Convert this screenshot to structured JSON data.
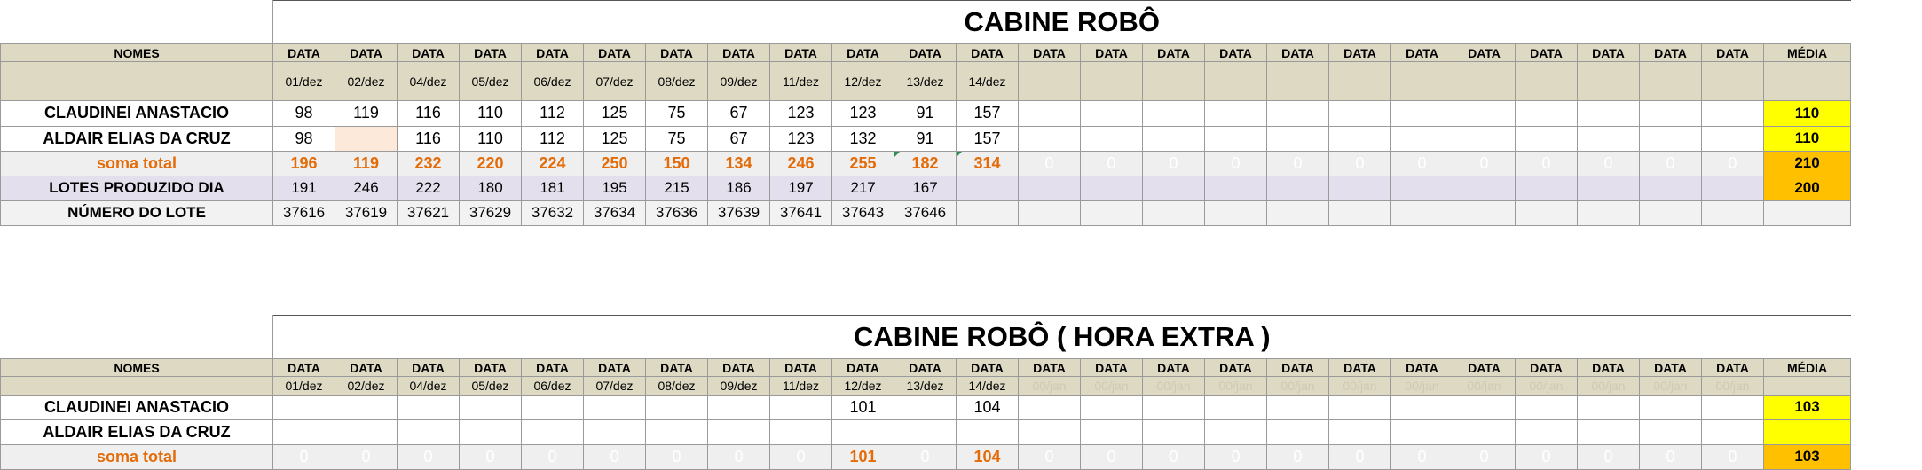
{
  "sheet1": {
    "title": "CABINE ROBÔ",
    "header": {
      "names_label": "NOMES",
      "date_label": "DATA",
      "average_label": "MÉDIA",
      "dates": [
        "01/dez",
        "02/dez",
        "04/dez",
        "05/dez",
        "06/dez",
        "07/dez",
        "08/dez",
        "09/dez",
        "11/dez",
        "12/dez",
        "13/dez",
        "14/dez",
        "",
        "",
        "",
        "",
        "",
        "",
        "",
        "",
        "",
        "",
        "",
        ""
      ]
    },
    "rows": [
      {
        "name": "CLAUDINEI ANASTACIO",
        "values": [
          "98",
          "119",
          "116",
          "110",
          "112",
          "125",
          "75",
          "67",
          "123",
          "123",
          "91",
          "157",
          "",
          "",
          "",
          "",
          "",
          "",
          "",
          "",
          "",
          "",
          "",
          ""
        ],
        "average": "110"
      },
      {
        "name": "ALDAIR ELIAS DA CRUZ",
        "values": [
          "98",
          "",
          "116",
          "110",
          "112",
          "125",
          "75",
          "67",
          "123",
          "132",
          "91",
          "157",
          "",
          "",
          "",
          "",
          "",
          "",
          "",
          "",
          "",
          "",
          "",
          ""
        ],
        "average": "110"
      }
    ],
    "total": {
      "label": "soma total",
      "values": [
        "196",
        "119",
        "232",
        "220",
        "224",
        "250",
        "150",
        "134",
        "246",
        "255",
        "182",
        "314",
        "0",
        "0",
        "0",
        "0",
        "0",
        "0",
        "0",
        "0",
        "0",
        "0",
        "0",
        "0"
      ],
      "average": "210"
    },
    "lotes": {
      "label": "LOTES PRODUZIDO DIA",
      "values": [
        "191",
        "246",
        "222",
        "180",
        "181",
        "195",
        "215",
        "186",
        "197",
        "217",
        "167",
        "",
        "",
        "",
        "",
        "",
        "",
        "",
        "",
        "",
        "",
        "",
        "",
        ""
      ],
      "average": "200"
    },
    "lote_numbers": {
      "label": "NÚMERO DO LOTE",
      "values": [
        "37616",
        "37619",
        "37621",
        "37629",
        "37632",
        "37634",
        "37636",
        "37639",
        "37641",
        "37643",
        "37646",
        "",
        "",
        "",
        "",
        "",
        "",
        "",
        "",
        "",
        "",
        "",
        "",
        ""
      ]
    }
  },
  "sheet2": {
    "title": "CABINE ROBÔ ( HORA EXTRA )",
    "header": {
      "names_label": "NOMES",
      "date_label": "DATA",
      "average_label": "MÉDIA",
      "dates": [
        "01/dez",
        "02/dez",
        "04/dez",
        "05/dez",
        "06/dez",
        "07/dez",
        "08/dez",
        "09/dez",
        "11/dez",
        "12/dez",
        "13/dez",
        "14/dez",
        "00/jan",
        "00/jan",
        "00/jan",
        "00/jan",
        "00/jan",
        "00/jan",
        "00/jan",
        "00/jan",
        "00/jan",
        "00/jan",
        "00/jan",
        "00/jan"
      ]
    },
    "rows": [
      {
        "name": "CLAUDINEI ANASTACIO",
        "values": [
          "",
          "",
          "",
          "",
          "",
          "",
          "",
          "",
          "",
          "101",
          "",
          "104",
          "",
          "",
          "",
          "",
          "",
          "",
          "",
          "",
          "",
          "",
          "",
          ""
        ],
        "average": "103"
      },
      {
        "name": "ALDAIR ELIAS DA CRUZ",
        "values": [
          "",
          "",
          "",
          "",
          "",
          "",
          "",
          "",
          "",
          "",
          "",
          "",
          "",
          "",
          "",
          "",
          "",
          "",
          "",
          "",
          "",
          "",
          "",
          ""
        ],
        "average": ""
      }
    ],
    "total": {
      "label": "soma total",
      "values": [
        "0",
        "0",
        "0",
        "0",
        "0",
        "0",
        "0",
        "0",
        "0",
        "101",
        "0",
        "104",
        "0",
        "0",
        "0",
        "0",
        "0",
        "0",
        "0",
        "0",
        "0",
        "0",
        "0",
        "0"
      ],
      "average": "103"
    }
  }
}
